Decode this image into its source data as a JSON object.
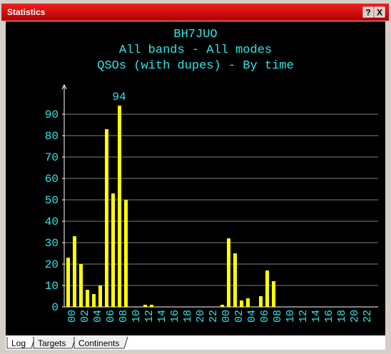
{
  "window": {
    "title": "Statistics",
    "buttons": [
      "?",
      "X"
    ]
  },
  "tabs": [
    "Log",
    "Targets",
    "Continents"
  ],
  "chart_data": {
    "type": "bar",
    "title_lines": [
      "BH7JUO",
      "All bands - All modes",
      "QSOs (with dupes) - By time"
    ],
    "categories": [
      "00",
      null,
      "02",
      null,
      "04",
      null,
      "06",
      null,
      "08",
      null,
      "10",
      null,
      "12",
      null,
      "14",
      null,
      "16",
      null,
      "18",
      null,
      "20",
      null,
      "22",
      null,
      "00",
      null,
      "02",
      null,
      "04",
      null,
      "06",
      null,
      "08",
      null,
      "10",
      null,
      "12",
      null,
      "14",
      null,
      "16",
      null,
      "18",
      null,
      "20",
      null,
      "22",
      null
    ],
    "values": [
      23,
      33,
      20,
      8,
      6,
      10,
      83,
      53,
      94,
      50,
      0,
      0,
      1,
      1,
      0,
      0,
      0,
      0,
      0,
      0,
      0,
      0,
      0,
      0,
      1,
      32,
      25,
      3,
      4,
      0,
      5,
      17,
      12,
      0,
      0,
      0,
      0,
      0,
      0,
      0,
      0,
      0,
      0,
      0,
      0,
      0,
      0,
      0
    ],
    "color": "#ffff00",
    "ylim": [
      0,
      103
    ],
    "yticks": [
      0,
      10,
      20,
      30,
      40,
      50,
      60,
      70,
      80,
      90
    ],
    "grid": true
  }
}
